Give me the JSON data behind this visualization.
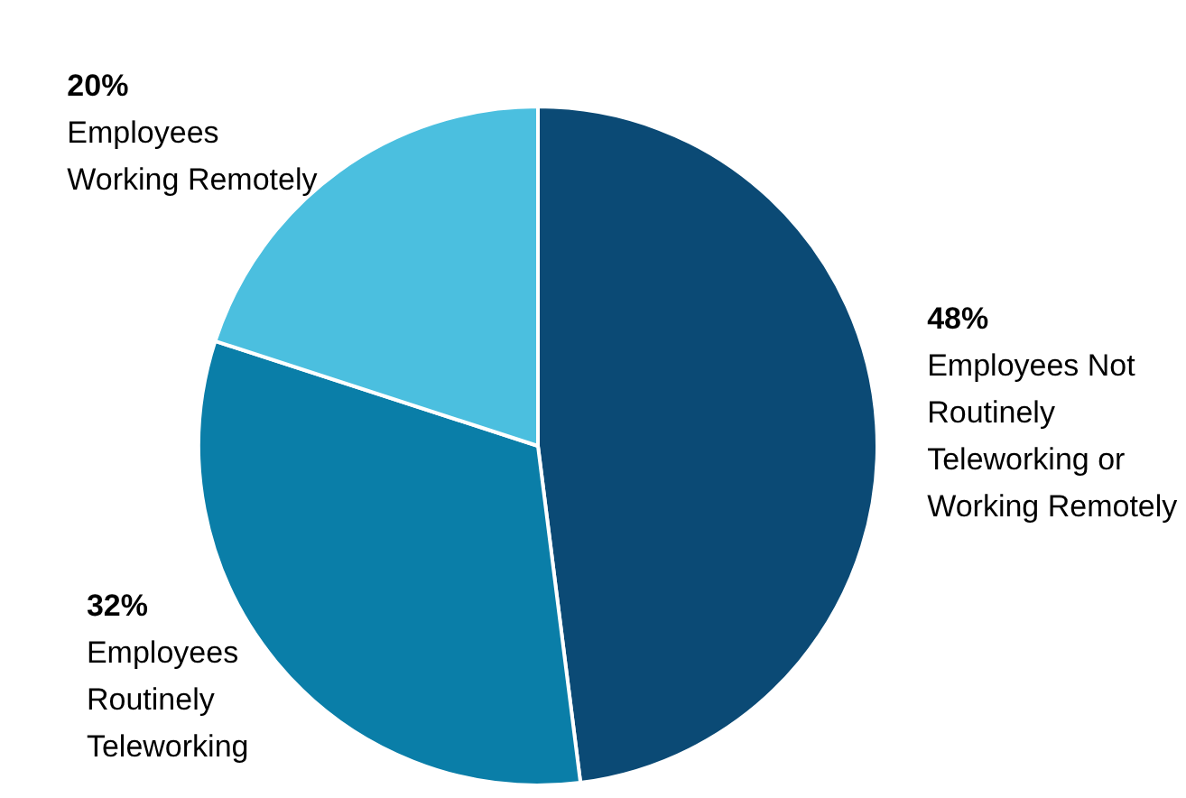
{
  "chart_data": {
    "type": "pie",
    "categories": [
      "Employees Not Routinely Teleworking or Working Remotely",
      "Employees Routinely Teleworking",
      "Employees Working Remotely"
    ],
    "values": [
      48,
      32,
      20
    ],
    "value_labels": [
      "48%",
      "32%",
      "20%"
    ],
    "colors": [
      "#0b4a75",
      "#0a7ea8",
      "#4bbfdf"
    ],
    "legend": false
  }
}
